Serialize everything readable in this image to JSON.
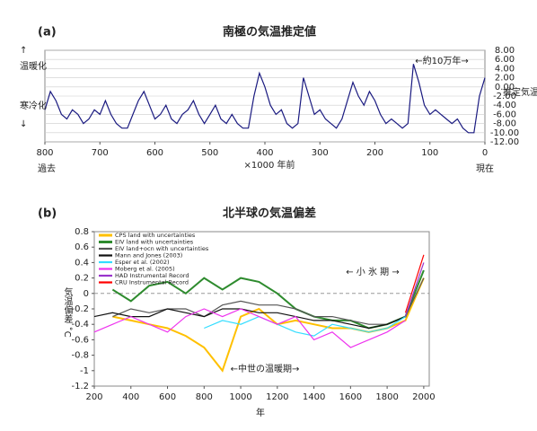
{
  "chart_data": [
    {
      "type": "line",
      "panel": "(a)",
      "title": "南極の気温推定値",
      "x_label": "×1000 年前",
      "annotations": [
        "↑",
        "温暖化",
        "寒冷化",
        "↓",
        "推定気温",
        "←約10万年→",
        "過去",
        "現在"
      ],
      "xlim": [
        800,
        0
      ],
      "xticks": [
        800,
        700,
        600,
        500,
        400,
        300,
        200,
        100,
        0
      ],
      "ylim": [
        -12,
        8
      ],
      "yticks": [
        {
          "value": 8,
          "label": "8.00"
        },
        {
          "value": 6,
          "label": "6.00"
        },
        {
          "value": 4,
          "label": "4.00"
        },
        {
          "value": 2,
          "label": "2.00"
        },
        {
          "value": 0,
          "label": "0.00"
        },
        {
          "value": -2,
          "label": "-2.00"
        },
        {
          "value": -4,
          "label": "-4.00"
        },
        {
          "value": -6,
          "label": "-6.00"
        },
        {
          "value": -8,
          "label": "-8.00"
        },
        {
          "value": -10,
          "label": "-10.00"
        },
        {
          "value": -12,
          "label": "-12.00"
        }
      ],
      "grid": true,
      "x": [
        800,
        790,
        780,
        770,
        760,
        750,
        740,
        730,
        720,
        710,
        700,
        690,
        680,
        670,
        660,
        650,
        640,
        630,
        620,
        610,
        600,
        590,
        580,
        570,
        560,
        550,
        540,
        530,
        520,
        510,
        500,
        490,
        480,
        470,
        460,
        450,
        440,
        430,
        420,
        410,
        400,
        390,
        380,
        370,
        360,
        350,
        340,
        330,
        320,
        310,
        300,
        290,
        280,
        270,
        260,
        250,
        240,
        230,
        220,
        210,
        200,
        190,
        180,
        170,
        160,
        150,
        140,
        130,
        120,
        110,
        100,
        90,
        80,
        70,
        60,
        50,
        40,
        30,
        20,
        10,
        0
      ],
      "series": [
        {
          "color": "#1a1a80",
          "values": [
            -5,
            -1,
            -3,
            -6,
            -7,
            -5,
            -6,
            -8,
            -7,
            -5,
            -6,
            -3,
            -6,
            -8,
            -9,
            -9,
            -6,
            -3,
            -1,
            -4,
            -7,
            -6,
            -4,
            -7,
            -8,
            -6,
            -5,
            -3,
            -6,
            -8,
            -6,
            -4,
            -7,
            -8,
            -6,
            -8,
            -9,
            -9,
            -2,
            3,
            0,
            -4,
            -6,
            -5,
            -8,
            -9,
            -8,
            2,
            -2,
            -6,
            -5,
            -7,
            -8,
            -9,
            -7,
            -3,
            1,
            -2,
            -4,
            -1,
            -3,
            -6,
            -8,
            -7,
            -8,
            -9,
            -8,
            5,
            1,
            -4,
            -6,
            -5,
            -6,
            -7,
            -8,
            -7,
            -9,
            -10,
            -10,
            -2,
            2
          ]
        }
      ]
    },
    {
      "type": "line",
      "panel": "(b)",
      "title": "北半球の気温偏差",
      "x_label": "年",
      "y_label": "気温偏差 ˚C",
      "annotations": [
        "← 小 氷 期 →",
        "←中世の温暖期→"
      ],
      "xlim": [
        200,
        2030
      ],
      "xticks": [
        200,
        400,
        600,
        800,
        1000,
        1200,
        1400,
        1600,
        1800,
        2000
      ],
      "ylim": [
        -1.2,
        0.8
      ],
      "yticks": [
        0.8,
        0.6,
        0.4,
        0.2,
        0,
        -0.2,
        -0.4,
        -0.6,
        -0.8,
        -1,
        -1.2
      ],
      "zero_line": true,
      "x": [
        200,
        300,
        400,
        500,
        600,
        700,
        800,
        900,
        1000,
        1100,
        1200,
        1300,
        1400,
        1500,
        1600,
        1700,
        1800,
        1900,
        2000
      ],
      "series": [
        {
          "name": "CPS land with uncertainties",
          "color": "#ffc000",
          "values": [
            null,
            -0.3,
            -0.35,
            -0.4,
            -0.45,
            -0.55,
            -0.7,
            -1.0,
            -0.3,
            -0.2,
            -0.4,
            -0.35,
            -0.4,
            -0.45,
            -0.45,
            -0.5,
            -0.45,
            -0.35,
            0.2
          ]
        },
        {
          "name": "EIV land with uncertainties",
          "color": "#2e8b2e",
          "values": [
            null,
            0.05,
            -0.1,
            0.1,
            0.15,
            0.0,
            0.2,
            0.05,
            0.2,
            0.15,
            0.0,
            -0.2,
            -0.3,
            -0.35,
            -0.35,
            -0.45,
            -0.4,
            -0.3,
            0.3
          ]
        },
        {
          "name": "EIV land+ocn with uncertainties",
          "color": "#555555",
          "values": [
            null,
            -0.3,
            -0.2,
            -0.25,
            -0.2,
            -0.2,
            -0.3,
            -0.15,
            -0.1,
            -0.15,
            -0.15,
            -0.2,
            -0.3,
            -0.3,
            -0.35,
            -0.4,
            -0.4,
            -0.3,
            0.2
          ]
        },
        {
          "name": "Mann and Jones (2003)",
          "color": "#111111",
          "values": [
            -0.3,
            -0.25,
            -0.3,
            -0.3,
            -0.2,
            -0.25,
            -0.3,
            -0.2,
            -0.2,
            -0.25,
            -0.25,
            -0.3,
            -0.35,
            -0.35,
            -0.4,
            -0.45,
            -0.4,
            -0.3,
            null
          ]
        },
        {
          "name": "Esper et al. (2002)",
          "color": "#33ddff",
          "values": [
            null,
            null,
            null,
            null,
            null,
            null,
            -0.45,
            -0.35,
            -0.4,
            -0.3,
            -0.4,
            -0.5,
            -0.55,
            -0.4,
            -0.45,
            -0.5,
            -0.45,
            -0.3,
            null
          ]
        },
        {
          "name": "Moberg et al. (2005)",
          "color": "#ee33ee",
          "values": [
            -0.5,
            -0.4,
            -0.3,
            -0.4,
            -0.5,
            -0.3,
            -0.2,
            -0.3,
            -0.2,
            -0.3,
            -0.4,
            -0.3,
            -0.6,
            -0.5,
            -0.7,
            -0.6,
            -0.5,
            -0.35,
            null
          ]
        },
        {
          "name": "HAD Instrumental Record",
          "color": "#9933cc",
          "values": [
            null,
            null,
            null,
            null,
            null,
            null,
            null,
            null,
            null,
            null,
            null,
            null,
            null,
            null,
            null,
            null,
            null,
            -0.3,
            0.4
          ]
        },
        {
          "name": "CRU Instrumental Record",
          "color": "#ff0000",
          "values": [
            null,
            null,
            null,
            null,
            null,
            null,
            null,
            null,
            null,
            null,
            null,
            null,
            null,
            null,
            null,
            null,
            null,
            -0.25,
            0.5
          ]
        }
      ]
    }
  ]
}
